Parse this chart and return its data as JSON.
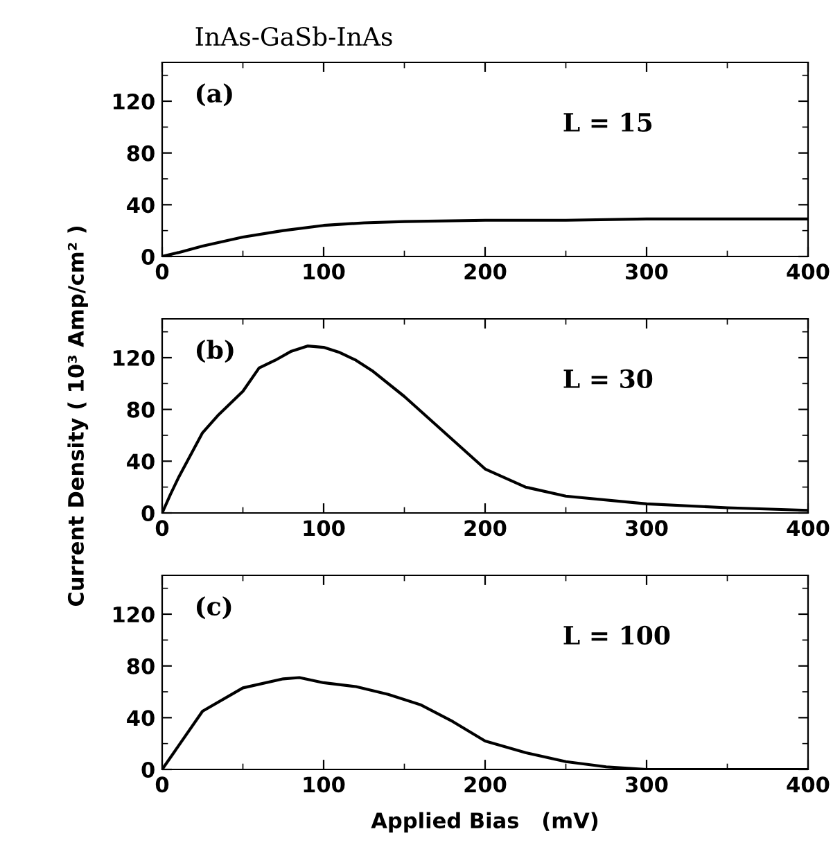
{
  "chart_data": [
    {
      "type": "line",
      "title": "InAs-GaSb-InAs",
      "annotations": [
        "(a)",
        "L = 15"
      ],
      "xlim": [
        0,
        400
      ],
      "xticks": [
        0,
        100,
        200,
        300,
        400
      ],
      "ylim": [
        0,
        150
      ],
      "yticks": [
        0,
        40,
        80,
        120
      ],
      "series": [
        {
          "color": "#000000",
          "x": [
            0,
            10,
            25,
            50,
            75,
            100,
            125,
            150,
            200,
            250,
            300,
            350,
            400
          ],
          "values": [
            0,
            3,
            8,
            15,
            20,
            24,
            26,
            27,
            28,
            28,
            29,
            29,
            29
          ]
        }
      ]
    },
    {
      "type": "line",
      "ylabel": "Current Density ( 10³ Amp/cm² )",
      "annotations": [
        "(b)",
        "L = 30"
      ],
      "xlim": [
        0,
        400
      ],
      "xticks": [
        0,
        100,
        200,
        300,
        400
      ],
      "ylim": [
        0,
        150
      ],
      "yticks": [
        0,
        40,
        80,
        120
      ],
      "series": [
        {
          "color": "#000000",
          "x": [
            0,
            5,
            10,
            25,
            35,
            50,
            60,
            70,
            80,
            90,
            100,
            110,
            120,
            130,
            150,
            175,
            200,
            225,
            250,
            300,
            350,
            400
          ],
          "values": [
            0,
            14,
            27,
            62,
            76,
            94,
            112,
            118,
            125,
            129,
            128,
            124,
            118,
            110,
            90,
            62,
            34,
            20,
            13,
            7,
            4,
            2
          ]
        }
      ]
    },
    {
      "type": "line",
      "xlabel": "Applied Bias   (mV)",
      "annotations": [
        "(c)",
        "L = 100"
      ],
      "xlim": [
        0,
        400
      ],
      "xticks": [
        0,
        100,
        200,
        300,
        400
      ],
      "ylim": [
        0,
        150
      ],
      "yticks": [
        0,
        40,
        80,
        120
      ],
      "series": [
        {
          "color": "#000000",
          "x": [
            0,
            10,
            25,
            50,
            75,
            85,
            100,
            120,
            140,
            160,
            180,
            200,
            225,
            250,
            275,
            300,
            400
          ],
          "values": [
            0,
            18,
            45,
            63,
            70,
            71,
            67,
            64,
            58,
            50,
            37,
            22,
            13,
            6,
            2,
            0,
            0
          ]
        }
      ]
    }
  ]
}
